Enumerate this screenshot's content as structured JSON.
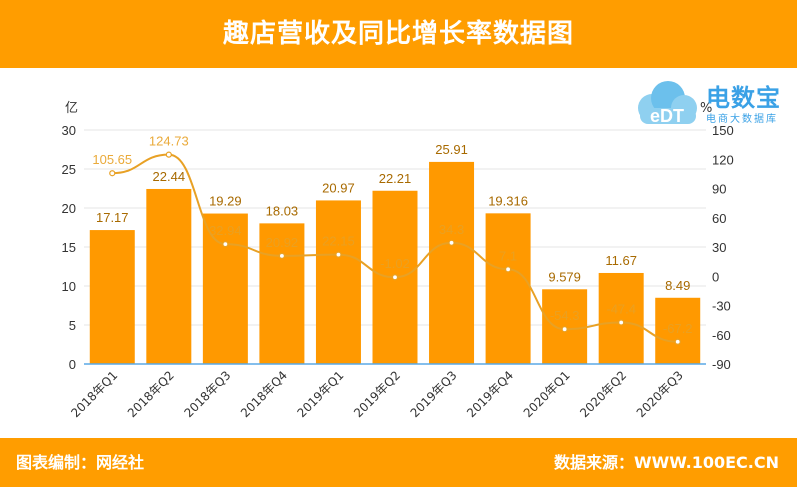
{
  "header": {
    "title": "趣店营收及同比增长率数据图"
  },
  "footer": {
    "left_text": "图表编制：网经社",
    "right_text": "数据来源：WWW.100EC.CN"
  },
  "logo": {
    "main_text": "电数宝",
    "sub_text": "电商大数据库",
    "badge_text": "eDT"
  },
  "colors": {
    "brand_orange": "#ff9d00",
    "bar": "#ff9900",
    "line": "#e8a125",
    "axis": "#5aa9e6",
    "logo_blue": "#3aa1e6"
  },
  "chart_data": {
    "type": "bar",
    "categories": [
      "2018年Q1",
      "2018年Q2",
      "2018年Q3",
      "2018年Q4",
      "2019年Q1",
      "2019年Q2",
      "2019年Q3",
      "2019年Q4",
      "2020年Q1",
      "2020年Q2",
      "2020年Q3"
    ],
    "series": [
      {
        "type": "bar",
        "axis": "left",
        "values": [
          17.17,
          22.44,
          19.29,
          18.03,
          20.97,
          22.21,
          25.91,
          19.316,
          9.579,
          11.67,
          8.49
        ]
      },
      {
        "type": "line",
        "axis": "right",
        "values": [
          105.65,
          124.73,
          32.94,
          20.92,
          22.15,
          -1.02,
          34.3,
          7.1,
          -54.3,
          -47.4,
          -67.2
        ]
      }
    ],
    "bar_labels": [
      "17.17",
      "22.44",
      "19.29",
      "18.03",
      "20.97",
      "22.21",
      "25.91",
      "19.316",
      "9.579",
      "11.67",
      "8.49"
    ],
    "line_labels": [
      "105.65",
      "124.73",
      "32.94",
      "20.92",
      "22.15",
      "-1.02",
      "34.3",
      "7.1",
      "-54.3",
      "-47.4",
      "-67.2"
    ],
    "ylabel": "亿",
    "y2label": "%",
    "ylim": [
      0,
      30
    ],
    "y2lim": [
      -90,
      150
    ],
    "yticks": [
      "0",
      "5",
      "10",
      "15",
      "20",
      "25",
      "30"
    ],
    "y2ticks": [
      "-90",
      "-60",
      "-30",
      "0",
      "30",
      "60",
      "90",
      "120",
      "150"
    ],
    "grid": true
  }
}
